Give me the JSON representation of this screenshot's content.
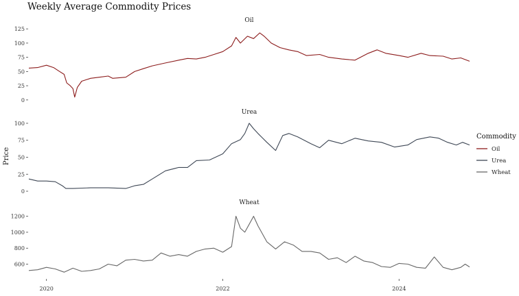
{
  "chart_data": {
    "type": "line",
    "title": "Weekly Average Commodity Prices",
    "ylabel": "Price",
    "xlabel": "",
    "x_range": [
      2019.8,
      2024.8
    ],
    "x_ticks": [
      {
        "value": 2020,
        "label": "2020"
      },
      {
        "value": 2022,
        "label": "2022"
      },
      {
        "value": 2024,
        "label": "2024"
      }
    ],
    "legend": {
      "title": "Commodity",
      "placement": "right",
      "entries": [
        "Oil",
        "Urea",
        "Wheat"
      ]
    },
    "facets": [
      {
        "name": "Oil",
        "color": "#8b1a1a",
        "ylim": [
          -5,
          130
        ],
        "y_ticks": [
          0,
          25,
          50,
          75,
          100,
          125
        ],
        "points": [
          [
            2019.8,
            56
          ],
          [
            2019.9,
            57
          ],
          [
            2020.0,
            61
          ],
          [
            2020.08,
            57
          ],
          [
            2020.15,
            50
          ],
          [
            2020.2,
            45
          ],
          [
            2020.23,
            30
          ],
          [
            2020.27,
            25
          ],
          [
            2020.3,
            20
          ],
          [
            2020.32,
            5
          ],
          [
            2020.35,
            22
          ],
          [
            2020.4,
            33
          ],
          [
            2020.5,
            38
          ],
          [
            2020.6,
            40
          ],
          [
            2020.7,
            42
          ],
          [
            2020.75,
            38
          ],
          [
            2020.9,
            40
          ],
          [
            2021.0,
            50
          ],
          [
            2021.1,
            55
          ],
          [
            2021.2,
            60
          ],
          [
            2021.35,
            65
          ],
          [
            2021.5,
            70
          ],
          [
            2021.6,
            73
          ],
          [
            2021.7,
            72
          ],
          [
            2021.8,
            75
          ],
          [
            2021.9,
            80
          ],
          [
            2022.0,
            85
          ],
          [
            2022.1,
            95
          ],
          [
            2022.15,
            110
          ],
          [
            2022.2,
            100
          ],
          [
            2022.28,
            112
          ],
          [
            2022.35,
            108
          ],
          [
            2022.42,
            118
          ],
          [
            2022.47,
            112
          ],
          [
            2022.55,
            100
          ],
          [
            2022.65,
            92
          ],
          [
            2022.75,
            88
          ],
          [
            2022.85,
            85
          ],
          [
            2022.95,
            78
          ],
          [
            2023.1,
            80
          ],
          [
            2023.2,
            75
          ],
          [
            2023.35,
            72
          ],
          [
            2023.5,
            70
          ],
          [
            2023.65,
            82
          ],
          [
            2023.75,
            88
          ],
          [
            2023.85,
            82
          ],
          [
            2024.0,
            78
          ],
          [
            2024.1,
            75
          ],
          [
            2024.25,
            82
          ],
          [
            2024.35,
            78
          ],
          [
            2024.5,
            77
          ],
          [
            2024.6,
            72
          ],
          [
            2024.7,
            74
          ],
          [
            2024.8,
            68
          ]
        ]
      },
      {
        "name": "Urea",
        "color": "#3d4654",
        "ylim": [
          -5,
          108
        ],
        "y_ticks": [
          0,
          25,
          50,
          75,
          100
        ],
        "points": [
          [
            2019.8,
            18
          ],
          [
            2019.9,
            15
          ],
          [
            2020.0,
            15
          ],
          [
            2020.1,
            14
          ],
          [
            2020.18,
            8
          ],
          [
            2020.22,
            4
          ],
          [
            2020.3,
            4
          ],
          [
            2020.5,
            5
          ],
          [
            2020.7,
            5
          ],
          [
            2020.9,
            4
          ],
          [
            2021.0,
            8
          ],
          [
            2021.1,
            10
          ],
          [
            2021.2,
            18
          ],
          [
            2021.35,
            30
          ],
          [
            2021.5,
            35
          ],
          [
            2021.6,
            35
          ],
          [
            2021.7,
            45
          ],
          [
            2021.85,
            46
          ],
          [
            2022.0,
            55
          ],
          [
            2022.1,
            70
          ],
          [
            2022.2,
            76
          ],
          [
            2022.25,
            85
          ],
          [
            2022.3,
            100
          ],
          [
            2022.35,
            92
          ],
          [
            2022.4,
            85
          ],
          [
            2022.5,
            72
          ],
          [
            2022.6,
            60
          ],
          [
            2022.68,
            82
          ],
          [
            2022.75,
            85
          ],
          [
            2022.85,
            80
          ],
          [
            2023.0,
            70
          ],
          [
            2023.1,
            64
          ],
          [
            2023.2,
            75
          ],
          [
            2023.35,
            70
          ],
          [
            2023.5,
            78
          ],
          [
            2023.65,
            74
          ],
          [
            2023.8,
            72
          ],
          [
            2023.95,
            65
          ],
          [
            2024.1,
            68
          ],
          [
            2024.2,
            76
          ],
          [
            2024.35,
            80
          ],
          [
            2024.45,
            78
          ],
          [
            2024.55,
            72
          ],
          [
            2024.65,
            68
          ],
          [
            2024.72,
            72
          ],
          [
            2024.8,
            68
          ]
        ]
      },
      {
        "name": "Wheat",
        "color": "#666666",
        "ylim": [
          450,
          1300
        ],
        "y_ticks": [
          600,
          800,
          1000,
          1200
        ],
        "points": [
          [
            2019.8,
            520
          ],
          [
            2019.9,
            530
          ],
          [
            2020.0,
            560
          ],
          [
            2020.1,
            540
          ],
          [
            2020.2,
            500
          ],
          [
            2020.3,
            550
          ],
          [
            2020.4,
            510
          ],
          [
            2020.5,
            520
          ],
          [
            2020.6,
            540
          ],
          [
            2020.7,
            600
          ],
          [
            2020.8,
            580
          ],
          [
            2020.9,
            650
          ],
          [
            2021.0,
            660
          ],
          [
            2021.1,
            640
          ],
          [
            2021.2,
            650
          ],
          [
            2021.3,
            740
          ],
          [
            2021.4,
            700
          ],
          [
            2021.5,
            720
          ],
          [
            2021.6,
            700
          ],
          [
            2021.7,
            760
          ],
          [
            2021.8,
            790
          ],
          [
            2021.9,
            800
          ],
          [
            2022.0,
            750
          ],
          [
            2022.1,
            820
          ],
          [
            2022.15,
            1200
          ],
          [
            2022.2,
            1050
          ],
          [
            2022.25,
            1000
          ],
          [
            2022.3,
            1100
          ],
          [
            2022.35,
            1200
          ],
          [
            2022.4,
            1080
          ],
          [
            2022.5,
            880
          ],
          [
            2022.6,
            790
          ],
          [
            2022.7,
            880
          ],
          [
            2022.8,
            840
          ],
          [
            2022.9,
            760
          ],
          [
            2023.0,
            760
          ],
          [
            2023.1,
            740
          ],
          [
            2023.2,
            660
          ],
          [
            2023.3,
            680
          ],
          [
            2023.4,
            620
          ],
          [
            2023.5,
            700
          ],
          [
            2023.6,
            640
          ],
          [
            2023.7,
            620
          ],
          [
            2023.8,
            570
          ],
          [
            2023.9,
            560
          ],
          [
            2024.0,
            610
          ],
          [
            2024.1,
            600
          ],
          [
            2024.2,
            560
          ],
          [
            2024.3,
            550
          ],
          [
            2024.4,
            690
          ],
          [
            2024.5,
            560
          ],
          [
            2024.6,
            530
          ],
          [
            2024.7,
            560
          ],
          [
            2024.75,
            600
          ],
          [
            2024.8,
            565
          ]
        ]
      }
    ]
  }
}
